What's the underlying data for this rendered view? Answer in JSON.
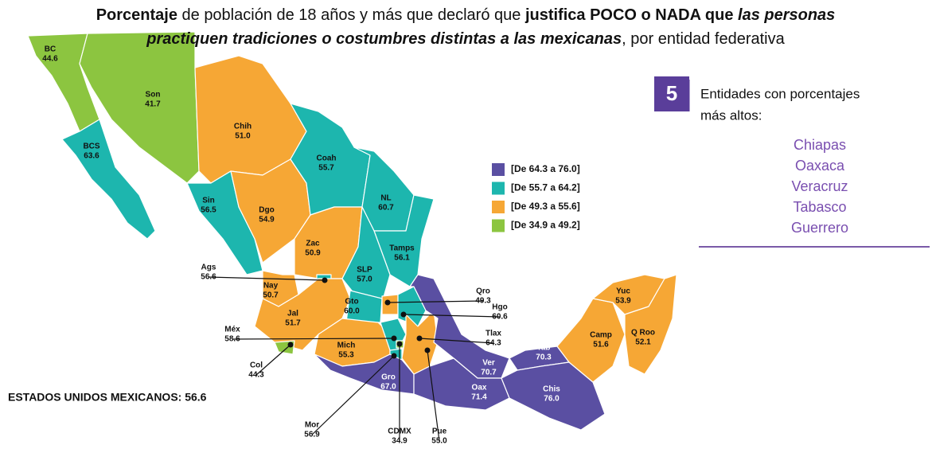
{
  "title": {
    "lines": [
      [
        {
          "text": "Porcentaje",
          "style": "bold"
        },
        {
          "text": " de población de 18 años y más que declaró que ",
          "style": "normal"
        },
        {
          "text": "justifica POCO o NADA que",
          "style": "bold"
        },
        {
          "text": " las personas",
          "style": "bold-italic"
        }
      ],
      [
        {
          "text": "practiquen tradiciones o costumbres distintas a las mexicanas",
          "style": "bold-italic"
        },
        {
          "text": ", por entidad federativa",
          "style": "normal"
        }
      ]
    ]
  },
  "legend": [
    {
      "label": "[De 64.3 a 76.0]",
      "color": "#5a4fa2"
    },
    {
      "label": "[De 55.7 a 64.2]",
      "color": "#1db6ae"
    },
    {
      "label": "[De 49.3 a 55.6]",
      "color": "#f6a735"
    },
    {
      "label": "[De 34.9 a 49.2]",
      "color": "#8cc540"
    }
  ],
  "states": [
    {
      "name": "BC",
      "value": "44.6",
      "color": "#8cc540"
    },
    {
      "name": "Son",
      "value": "41.7",
      "color": "#8cc540"
    },
    {
      "name": "BCS",
      "value": "63.6",
      "color": "#1db6ae"
    },
    {
      "name": "Chih",
      "value": "51.0",
      "color": "#f6a735"
    },
    {
      "name": "Sin",
      "value": "56.5",
      "color": "#1db6ae"
    },
    {
      "name": "Dgo",
      "value": "54.9",
      "color": "#f6a735"
    },
    {
      "name": "Coah",
      "value": "55.7",
      "color": "#1db6ae"
    },
    {
      "name": "NL",
      "value": "60.7",
      "color": "#1db6ae"
    },
    {
      "name": "Tamps",
      "value": "56.1",
      "color": "#1db6ae"
    },
    {
      "name": "Zac",
      "value": "50.9",
      "color": "#f6a735"
    },
    {
      "name": "SLP",
      "value": "57.0",
      "color": "#1db6ae"
    },
    {
      "name": "Nay",
      "value": "50.7",
      "color": "#f6a735"
    },
    {
      "name": "Ags",
      "value": "56.6",
      "color": "#1db6ae"
    },
    {
      "name": "Jal",
      "value": "51.7",
      "color": "#f6a735"
    },
    {
      "name": "Gto",
      "value": "60.0",
      "color": "#1db6ae"
    },
    {
      "name": "Qro",
      "value": "49.3",
      "color": "#f6a735"
    },
    {
      "name": "Hgo",
      "value": "60.6",
      "color": "#1db6ae"
    },
    {
      "name": "Mich",
      "value": "55.3",
      "color": "#f6a735"
    },
    {
      "name": "Col",
      "value": "44.3",
      "color": "#8cc540"
    },
    {
      "name": "Méx",
      "value": "58.6",
      "color": "#1db6ae"
    },
    {
      "name": "CDMX",
      "value": "34.9",
      "color": "#8cc540"
    },
    {
      "name": "Mor",
      "value": "56.9",
      "color": "#1db6ae"
    },
    {
      "name": "Tlax",
      "value": "64.3",
      "color": "#5a4fa2"
    },
    {
      "name": "Pue",
      "value": "55.0",
      "color": "#f6a735"
    },
    {
      "name": "Gro",
      "value": "67.0",
      "color": "#5a4fa2"
    },
    {
      "name": "Ver",
      "value": "70.7",
      "color": "#5a4fa2"
    },
    {
      "name": "Oax",
      "value": "71.4",
      "color": "#5a4fa2"
    },
    {
      "name": "Tab",
      "value": "70.3",
      "color": "#5a4fa2"
    },
    {
      "name": "Chis",
      "value": "76.0",
      "color": "#5a4fa2"
    },
    {
      "name": "Camp",
      "value": "51.6",
      "color": "#f6a735"
    },
    {
      "name": "Yuc",
      "value": "53.9",
      "color": "#f6a735"
    },
    {
      "name": "Q Roo",
      "value": "52.1",
      "color": "#f6a735"
    }
  ],
  "national": "ESTADOS UNIDOS MEXICANOS: 56.6",
  "top5": {
    "number": "5",
    "heading": [
      "Entidades con porcentajes",
      "más altos:"
    ],
    "items": [
      "Chiapas",
      "Oaxaca",
      "Veracruz",
      "Tabasco",
      "Guerrero"
    ]
  }
}
